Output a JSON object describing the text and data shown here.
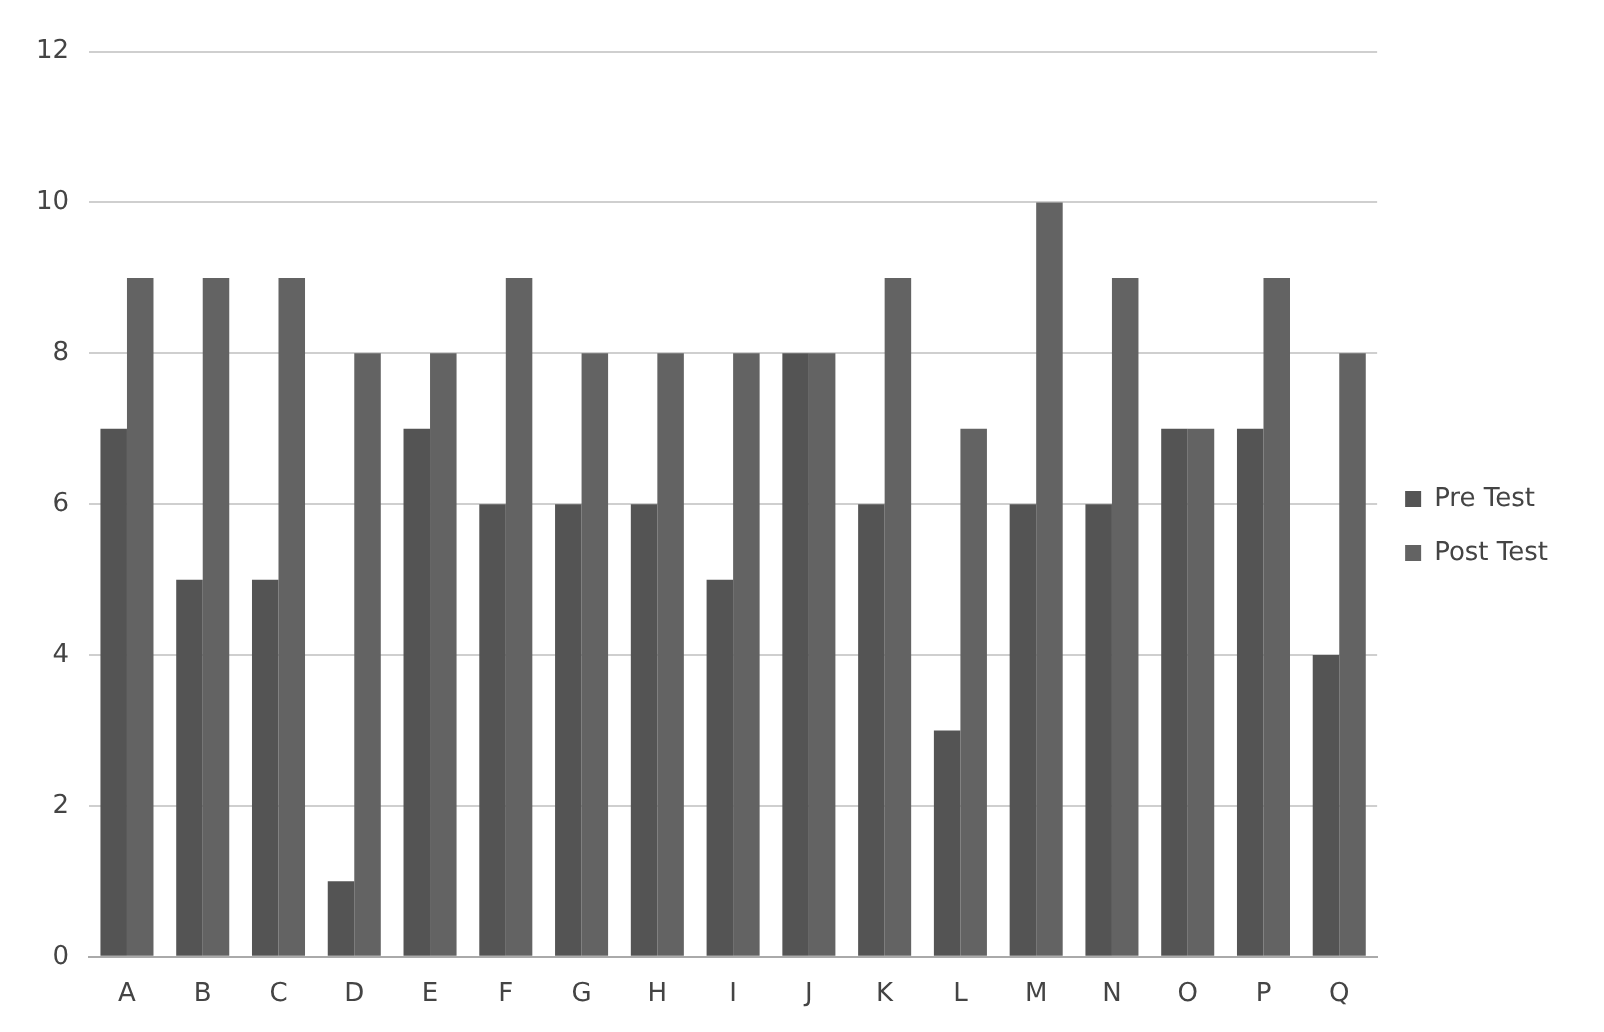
{
  "chart_data": {
    "type": "bar",
    "categories": [
      "A",
      "B",
      "C",
      "D",
      "E",
      "F",
      "G",
      "H",
      "I",
      "J",
      "K",
      "L",
      "M",
      "N",
      "O",
      "P",
      "Q"
    ],
    "series": [
      {
        "name": "Pre Test",
        "color": "#545454",
        "values": [
          7,
          5,
          5,
          1,
          7,
          6,
          6,
          6,
          5,
          8,
          6,
          3,
          6,
          6,
          7,
          7,
          4
        ]
      },
      {
        "name": "Post Test",
        "color": "#636363",
        "values": [
          9,
          9,
          9,
          8,
          8,
          9,
          8,
          8,
          8,
          8,
          9,
          7,
          10,
          9,
          7,
          9,
          8
        ]
      }
    ],
    "ylim": [
      0,
      12
    ],
    "yticks": [
      0,
      2,
      4,
      6,
      8,
      10,
      12
    ],
    "grid": "y",
    "legend": "right"
  }
}
